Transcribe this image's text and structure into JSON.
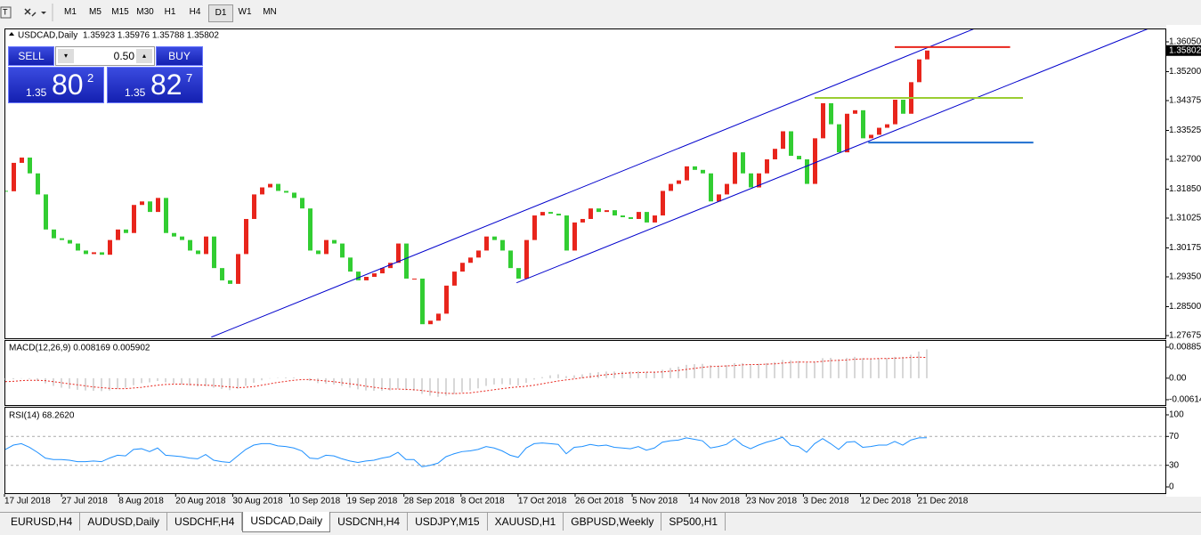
{
  "toolbar": {
    "timeframes": [
      "M1",
      "M5",
      "M15",
      "M30",
      "H1",
      "H4",
      "D1",
      "W1",
      "MN"
    ]
  },
  "trade_panel": {
    "sell": "SELL",
    "lot": "0.50",
    "buy": "BUY",
    "bid": {
      "big": "1.35",
      "main": "80",
      "sup": "2"
    },
    "ask": {
      "big": "1.35",
      "main": "82",
      "sup": "7"
    }
  },
  "tabs": [
    "EURUSD,H4",
    "AUDUSD,Daily",
    "USDCHF,H4",
    "USDCAD,Daily",
    "USDCNH,H4",
    "USDJPY,M15",
    "XAUUSD,H1",
    "GBPUSD,Weekly",
    "SP500,H1"
  ],
  "chart_data": [
    {
      "type": "candlestick",
      "title": "USDCAD,Daily",
      "ohlc_header": "1.35923 1.35976 1.35788 1.35802",
      "up_color": "#e8251c",
      "down_color": "#32cd32",
      "closes": [
        1.3179,
        1.326,
        1.3275,
        1.323,
        1.317,
        1.307,
        1.3045,
        1.304,
        1.303,
        1.301,
        1.3,
        1.3005,
        1.2998,
        1.304,
        1.307,
        1.306,
        1.314,
        1.315,
        1.312,
        1.316,
        1.306,
        1.305,
        1.304,
        1.301,
        1.3,
        1.305,
        1.296,
        1.2925,
        1.2915,
        1.3,
        1.31,
        1.317,
        1.319,
        1.32,
        1.318,
        1.3175,
        1.316,
        1.313,
        1.301,
        1.3,
        1.304,
        1.303,
        1.299,
        1.295,
        1.2925,
        1.2935,
        1.2945,
        1.296,
        1.2975,
        1.303,
        1.293,
        1.293,
        1.28,
        1.281,
        1.283,
        1.291,
        1.295,
        1.2975,
        1.299,
        1.301,
        1.305,
        1.304,
        1.301,
        1.296,
        1.293,
        1.304,
        1.311,
        1.312,
        1.3115,
        1.311,
        1.301,
        1.309,
        1.31,
        1.313,
        1.312,
        1.3125,
        1.311,
        1.3105,
        1.31,
        1.312,
        1.309,
        1.311,
        1.318,
        1.32,
        1.321,
        1.325,
        1.324,
        1.323,
        1.315,
        1.317,
        1.32,
        1.329,
        1.323,
        1.319,
        1.323,
        1.327,
        1.33,
        1.335,
        1.328,
        1.327,
        1.32,
        1.333,
        1.343,
        1.337,
        1.329,
        1.34,
        1.341,
        1.333,
        1.334,
        1.336,
        1.337,
        1.344,
        1.34,
        1.349,
        1.3555,
        1.35802
      ],
      "ylim": [
        1.27675,
        1.3605
      ],
      "yticks": [
        {
          "value": 1.3605,
          "label": "1.36050"
        },
        {
          "value": 1.352,
          "label": "1.35200"
        },
        {
          "value": 1.34375,
          "label": "1.34375"
        },
        {
          "value": 1.33525,
          "label": "1.33525"
        },
        {
          "value": 1.327,
          "label": "1.32700"
        },
        {
          "value": 1.3185,
          "label": "1.31850"
        },
        {
          "value": 1.31025,
          "label": "1.31025"
        },
        {
          "value": 1.30175,
          "label": "1.30175"
        },
        {
          "value": 1.2935,
          "label": "1.29350"
        },
        {
          "value": 1.285,
          "label": "1.28500"
        },
        {
          "value": 1.27675,
          "label": "1.27675"
        }
      ],
      "current_price": {
        "value": 1.35802,
        "label": "1.35802"
      },
      "drawings": [
        {
          "color": "#0000cc",
          "points": [
            [
              25.7,
              1.2763
            ],
            [
              121,
              1.3643
            ]
          ]
        },
        {
          "color": "#0000cc",
          "points": [
            [
              63.8,
              1.2918
            ],
            [
              142.7,
              1.3643
            ]
          ]
        },
        {
          "color": "#e8251c",
          "points": [
            [
              111,
              1.359
            ],
            [
              125.4,
              1.359
            ]
          ]
        },
        {
          "color": "#9acd32",
          "points": [
            [
              101,
              1.3445
            ],
            [
              127,
              1.3445
            ]
          ]
        },
        {
          "color": "#1e6fd0",
          "points": [
            [
              107.7,
              1.3318
            ],
            [
              128.3,
              1.3318
            ]
          ]
        }
      ],
      "x_labels": [
        "17 Jul 2018",
        "27 Jul 2018",
        "8 Aug 2018",
        "20 Aug 2018",
        "30 Aug 2018",
        "10 Sep 2018",
        "19 Sep 2018",
        "28 Sep 2018",
        "8 Oct 2018",
        "17 Oct 2018",
        "26 Oct 2018",
        "5 Nov 2018",
        "14 Nov 2018",
        "23 Nov 2018",
        "3 Dec 2018",
        "12 Dec 2018",
        "21 Dec 2018"
      ]
    },
    {
      "type": "macd",
      "title": "MACD(12,26,9) 0.008169 0.005902",
      "hist_color": "#b0b0b0",
      "signal_color": "#e8251c",
      "macd": [
        -0.0005,
        -0.0003,
        -0.0001,
        -0.0002,
        -0.0008,
        -0.0015,
        -0.0022,
        -0.0027,
        -0.003,
        -0.0033,
        -0.0035,
        -0.0036,
        -0.0037,
        -0.0035,
        -0.003,
        -0.0027,
        -0.002,
        -0.0014,
        -0.0012,
        -0.0008,
        -0.0012,
        -0.0015,
        -0.0018,
        -0.0021,
        -0.0024,
        -0.0023,
        -0.0027,
        -0.0031,
        -0.0034,
        -0.003,
        -0.0022,
        -0.0013,
        -0.0006,
        -0.0001,
        0.0001,
        0.0002,
        0.0002,
        0.0,
        -0.0008,
        -0.0014,
        -0.0016,
        -0.0018,
        -0.0022,
        -0.0027,
        -0.0032,
        -0.0035,
        -0.0036,
        -0.0036,
        -0.0035,
        -0.003,
        -0.0034,
        -0.0036,
        -0.0045,
        -0.005,
        -0.0053,
        -0.005,
        -0.0045,
        -0.004,
        -0.0035,
        -0.0029,
        -0.0022,
        -0.0018,
        -0.0017,
        -0.0019,
        -0.0021,
        -0.0013,
        -0.0004,
        0.0003,
        0.0008,
        0.0011,
        0.0006,
        0.0008,
        0.0011,
        0.0015,
        0.0017,
        0.0019,
        0.0019,
        0.0019,
        0.0019,
        0.002,
        0.0018,
        0.0019,
        0.0024,
        0.0029,
        0.0033,
        0.0038,
        0.004,
        0.0041,
        0.0037,
        0.0036,
        0.0037,
        0.0043,
        0.0043,
        0.004,
        0.0041,
        0.0043,
        0.0046,
        0.0052,
        0.0051,
        0.0049,
        0.0044,
        0.0048,
        0.0057,
        0.0058,
        0.0054,
        0.0058,
        0.0061,
        0.0057,
        0.0056,
        0.0056,
        0.0057,
        0.0061,
        0.0061,
        0.0067,
        0.0076,
        0.0082
      ],
      "signal": [
        -0.001,
        -0.0009,
        -0.0007,
        -0.0006,
        -0.0006,
        -0.0007,
        -0.001,
        -0.0013,
        -0.0016,
        -0.0019,
        -0.0022,
        -0.0025,
        -0.0027,
        -0.0029,
        -0.003,
        -0.003,
        -0.0028,
        -0.0026,
        -0.0023,
        -0.002,
        -0.0018,
        -0.0017,
        -0.0017,
        -0.0018,
        -0.0019,
        -0.002,
        -0.0021,
        -0.0023,
        -0.0025,
        -0.0027,
        -0.0026,
        -0.0024,
        -0.002,
        -0.0016,
        -0.0012,
        -0.0009,
        -0.0006,
        -0.0004,
        -0.0004,
        -0.0006,
        -0.0008,
        -0.001,
        -0.0013,
        -0.0016,
        -0.0019,
        -0.0023,
        -0.0026,
        -0.0029,
        -0.0031,
        -0.0031,
        -0.0032,
        -0.0033,
        -0.0035,
        -0.0038,
        -0.0041,
        -0.0043,
        -0.0044,
        -0.0043,
        -0.0042,
        -0.0039,
        -0.0036,
        -0.0033,
        -0.003,
        -0.0027,
        -0.0025,
        -0.0023,
        -0.002,
        -0.0016,
        -0.0012,
        -0.0008,
        -0.0005,
        -0.0002,
        0.0001,
        0.0004,
        0.0007,
        0.001,
        0.0012,
        0.0014,
        0.0015,
        0.0016,
        0.0017,
        0.0017,
        0.0018,
        0.002,
        0.0022,
        0.0025,
        0.0028,
        0.0031,
        0.0033,
        0.0034,
        0.0035,
        0.0036,
        0.0038,
        0.0039,
        0.0039,
        0.004,
        0.0041,
        0.0043,
        0.0045,
        0.0046,
        0.0046,
        0.0046,
        0.0048,
        0.005,
        0.0051,
        0.0052,
        0.0054,
        0.0055,
        0.0055,
        0.0056,
        0.0056,
        0.0057,
        0.0058,
        0.0059,
        0.006,
        0.0059
      ],
      "ylim": [
        -0.00614,
        0.00885
      ],
      "yticks": [
        {
          "value": 0.00885,
          "label": "0.00885"
        },
        {
          "value": 0,
          "label": "0.00"
        },
        {
          "value": -0.00614,
          "label": "-0.00614"
        }
      ]
    },
    {
      "type": "line",
      "title": "RSI(14) 68.2620",
      "color": "#1e90ff",
      "values": [
        52,
        58,
        60,
        55,
        48,
        40,
        38,
        38,
        37,
        35,
        35,
        36,
        35,
        40,
        44,
        43,
        52,
        53,
        49,
        54,
        44,
        43,
        42,
        40,
        39,
        45,
        37,
        35,
        34,
        43,
        52,
        58,
        60,
        60,
        57,
        56,
        54,
        50,
        40,
        39,
        44,
        43,
        39,
        36,
        34,
        36,
        37,
        40,
        42,
        48,
        38,
        38,
        28,
        30,
        33,
        42,
        46,
        49,
        50,
        52,
        56,
        54,
        50,
        44,
        41,
        54,
        60,
        61,
        60,
        59,
        46,
        55,
        56,
        59,
        57,
        58,
        55,
        54,
        53,
        56,
        51,
        54,
        62,
        64,
        65,
        68,
        66,
        64,
        54,
        56,
        59,
        67,
        58,
        53,
        58,
        62,
        65,
        69,
        58,
        56,
        48,
        60,
        67,
        60,
        52,
        62,
        63,
        55,
        56,
        58,
        58,
        63,
        58,
        65,
        68,
        68.262
      ],
      "ylim": [
        0,
        100
      ],
      "yticks": [
        100,
        70,
        30,
        0
      ],
      "levels": [
        70,
        30
      ]
    }
  ]
}
